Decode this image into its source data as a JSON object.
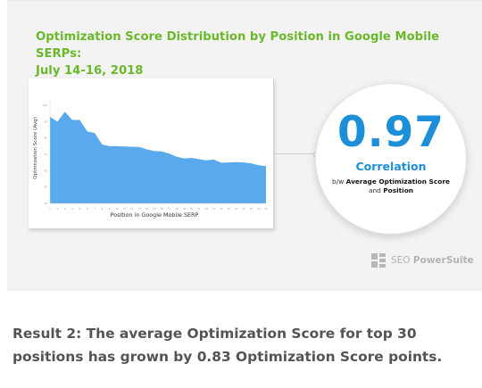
{
  "header": {
    "title_line1": "Optimization Score Distribution by Position in Google Mobile SERPs:",
    "title_line2": "July 14-16, 2018"
  },
  "correlation": {
    "value": "0.97",
    "label": "Correlation",
    "desc_prefix": "b/w",
    "desc_bold1": "Average Optimization Score",
    "desc_mid": "and",
    "desc_bold2": "Position"
  },
  "brand": {
    "name_light": "SEO",
    "name_bold": "PowerSuite",
    "icon": "seo-powersuite-logo-icon"
  },
  "result": {
    "line1": "Result 2: The average Optimization Score for top 30",
    "line2": "positions has grown by 0.83 Optimization Score points."
  },
  "colors": {
    "title": "#6bb82a",
    "accent": "#1d8fd8",
    "area_fill": "#5aa9ec",
    "card_bg": "#f3f3f3",
    "result_text": "#545454"
  },
  "chart_data": {
    "type": "area",
    "xlabel": "Position in Google Mobile SERP",
    "ylabel": "Optimization Score (Avg)",
    "x": [
      1,
      2,
      3,
      4,
      5,
      6,
      7,
      8,
      9,
      10,
      11,
      12,
      13,
      14,
      15,
      16,
      17,
      18,
      19,
      20,
      21,
      22,
      23,
      24,
      25,
      26,
      27,
      28,
      29,
      30
    ],
    "values": [
      93,
      90,
      96,
      91,
      91,
      84,
      83,
      76,
      75,
      75,
      74.8,
      74.6,
      74.5,
      73,
      72,
      71.8,
      70.5,
      68.5,
      67.5,
      67.8,
      67,
      66.3,
      66.8,
      64.8,
      65,
      65.2,
      65,
      64.5,
      63.3,
      62.8
    ],
    "ylim": [
      40,
      100
    ],
    "grid": false,
    "legend": "none"
  }
}
